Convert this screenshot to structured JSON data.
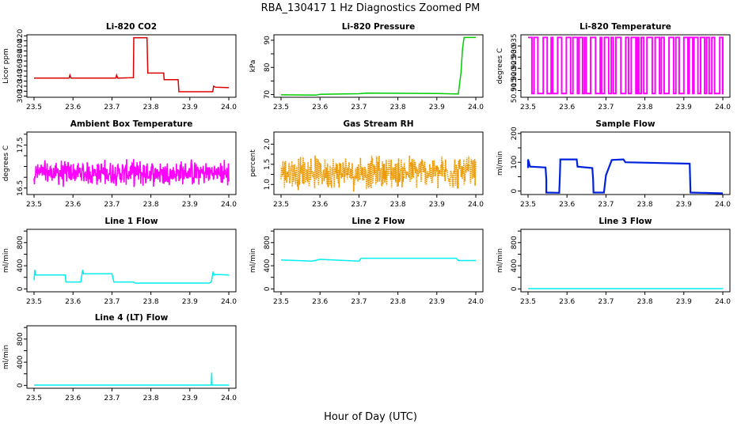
{
  "figure": {
    "title": "RBA_130417 1 Hz Diagnostics Zoomed PM",
    "xlabel": "Hour of Day (UTC)"
  },
  "chart_data": [
    {
      "id": "co2",
      "type": "line",
      "title": "Li-820 CO2",
      "ylabel": "Licor ppm",
      "color": "#dd0000",
      "xlim": [
        23.5,
        24.0
      ],
      "ylim": [
        298,
        422
      ],
      "yticks": [
        300,
        310,
        320,
        330,
        340,
        350,
        360,
        370,
        380,
        390,
        400,
        410,
        420
      ],
      "ytick_labels": [
        "300",
        "",
        "320",
        "",
        "340",
        "",
        "360",
        "",
        "380",
        "",
        "400",
        "",
        "420"
      ],
      "x": [
        23.5,
        23.59,
        23.592,
        23.595,
        23.71,
        23.712,
        23.715,
        23.755,
        23.756,
        23.79,
        23.792,
        23.833,
        23.834,
        23.87,
        23.872,
        23.959,
        23.961,
        23.966,
        24.0
      ],
      "y": [
        336,
        336,
        342,
        336,
        336,
        342,
        336,
        337,
        416,
        416,
        346,
        346,
        333,
        333,
        309,
        309,
        320,
        318,
        317
      ]
    },
    {
      "id": "pressure",
      "type": "line",
      "title": "Li-820 Pressure",
      "ylabel": "kPa",
      "color": "#00cc00",
      "xlim": [
        23.5,
        24.0
      ],
      "ylim": [
        69,
        92
      ],
      "yticks": [
        70,
        75,
        80,
        85,
        90
      ],
      "ytick_labels": [
        "70",
        "",
        "80",
        "",
        "90"
      ],
      "x": [
        23.5,
        23.59,
        23.6,
        23.7,
        23.72,
        23.9,
        23.955,
        23.962,
        23.966,
        23.97,
        24.0
      ],
      "y": [
        69.9,
        69.8,
        70.1,
        70.3,
        70.5,
        70.4,
        70.2,
        78,
        87,
        91,
        91
      ]
    },
    {
      "id": "temp",
      "type": "line",
      "title": "Li-820 Temperature",
      "ylabel": "degrees C",
      "color": "#ff00ff",
      "xlim": [
        23.5,
        24.0
      ],
      "ylim": [
        50.912,
        50.94
      ],
      "yticks": [
        50.915,
        50.92,
        50.925,
        50.93,
        50.935
      ],
      "ytick_labels": [
        "50.915",
        "50.920",
        "50.925",
        "50.930",
        "50.935"
      ],
      "low": 50.9137,
      "high": 50.9388
    },
    {
      "id": "ambient",
      "type": "line",
      "title": "Ambient Box Temperature",
      "ylabel": "degrees C",
      "color": "#ff00ff",
      "xlim": [
        23.5,
        24.0
      ],
      "ylim": [
        16.35,
        17.8
      ],
      "yticks": [
        16.5,
        16.75,
        17.0,
        17.25,
        17.5,
        17.75
      ],
      "ytick_labels": [
        "16.5",
        "",
        "",
        "",
        "17.5",
        ""
      ],
      "center": 16.85,
      "spread": 0.25
    },
    {
      "id": "rh",
      "type": "line",
      "title": "Gas Stream RH",
      "ylabel": "percent",
      "color": "#ee9900",
      "xlim": [
        23.5,
        24.0
      ],
      "ylim": [
        0.75,
        2.3
      ],
      "yticks": [
        1.0,
        1.25,
        1.5,
        1.75,
        2.0
      ],
      "ytick_labels": [
        "1.0",
        "",
        "1.5",
        "",
        "2.0"
      ],
      "center": 1.3,
      "spread": 0.35
    },
    {
      "id": "sample",
      "type": "line",
      "title": "Sample Flow",
      "ylabel": "ml/min",
      "color": "#0022dd",
      "xlim": [
        23.5,
        24.0
      ],
      "ylim": [
        -12,
        205
      ],
      "yticks": [
        0,
        50,
        100,
        150,
        200
      ],
      "ytick_labels": [
        "0",
        "",
        "100",
        "",
        "200"
      ],
      "x": [
        23.5,
        23.5,
        23.505,
        23.545,
        23.547,
        23.547,
        23.58,
        23.582,
        23.583,
        23.625,
        23.627,
        23.627,
        23.665,
        23.667,
        23.668,
        23.695,
        23.7,
        23.715,
        23.743,
        23.745,
        23.75,
        23.915,
        23.917,
        24.0
      ],
      "y": [
        80,
        110,
        85,
        82,
        40,
        -5,
        -6,
        60,
        110,
        110,
        85,
        85,
        80,
        40,
        -5,
        -5,
        55,
        108,
        110,
        110,
        100,
        95,
        -5,
        -8
      ]
    },
    {
      "id": "line1",
      "type": "line",
      "title": "Line 1 Flow",
      "ylabel": "ml/min",
      "color": "#00eeee",
      "xlim": [
        23.5,
        24.0
      ],
      "ylim": [
        -50,
        1030
      ],
      "yticks": [
        0,
        200,
        400,
        600,
        800,
        1000
      ],
      "ytick_labels": [
        "0",
        "",
        "400",
        "",
        "800",
        ""
      ],
      "x": [
        23.5,
        23.502,
        23.503,
        23.58,
        23.582,
        23.62,
        23.625,
        23.627,
        23.7,
        23.705,
        23.755,
        23.76,
        23.95,
        23.955,
        23.96,
        23.962,
        23.97,
        24.0
      ],
      "y": [
        150,
        330,
        240,
        240,
        120,
        120,
        330,
        260,
        260,
        120,
        120,
        100,
        100,
        120,
        300,
        240,
        250,
        240
      ]
    },
    {
      "id": "line2",
      "type": "line",
      "title": "Line 2 Flow",
      "ylabel": "ml/min",
      "color": "#00eeee",
      "xlim": [
        23.5,
        24.0
      ],
      "ylim": [
        -50,
        1030
      ],
      "yticks": [
        0,
        200,
        400,
        600,
        800,
        1000
      ],
      "ytick_labels": [
        "0",
        "",
        "400",
        "",
        "800",
        ""
      ],
      "x": [
        23.5,
        23.58,
        23.6,
        23.7,
        23.705,
        23.95,
        23.955,
        24.0
      ],
      "y": [
        500,
        480,
        510,
        480,
        530,
        530,
        490,
        490
      ]
    },
    {
      "id": "line3",
      "type": "line",
      "title": "Line 3 Flow",
      "ylabel": "ml/min",
      "color": "#00eeee",
      "xlim": [
        23.5,
        24.0
      ],
      "ylim": [
        -50,
        1030
      ],
      "yticks": [
        0,
        200,
        400,
        600,
        800,
        1000
      ],
      "ytick_labels": [
        "0",
        "",
        "400",
        "",
        "800",
        ""
      ],
      "x": [
        23.5,
        24.0
      ],
      "y": [
        5,
        5
      ]
    },
    {
      "id": "line4",
      "type": "line",
      "title": "Line 4 (LT) Flow",
      "ylabel": "ml/min",
      "color": "#00eeee",
      "xlim": [
        23.5,
        24.0
      ],
      "ylim": [
        -50,
        1030
      ],
      "yticks": [
        0,
        200,
        400,
        600,
        800,
        1000
      ],
      "ytick_labels": [
        "0",
        "",
        "400",
        "",
        "800",
        ""
      ],
      "x": [
        23.5,
        23.955,
        23.956,
        23.957,
        23.958,
        24.0
      ],
      "y": [
        5,
        5,
        220,
        5,
        5,
        5
      ]
    }
  ],
  "shared_x_ticks": [
    "23.5",
    "23.6",
    "23.7",
    "23.8",
    "23.9",
    "24.0"
  ]
}
